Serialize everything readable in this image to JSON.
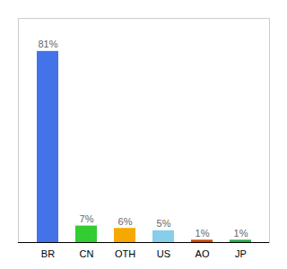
{
  "chart_data": {
    "type": "bar",
    "categories": [
      "BR",
      "CN",
      "OTH",
      "US",
      "AO",
      "JP"
    ],
    "values": [
      81,
      7,
      6,
      5,
      1,
      1
    ],
    "value_labels": [
      "81%",
      "7%",
      "6%",
      "5%",
      "1%",
      "1%"
    ],
    "data_labels": true,
    "colors": [
      "#4472e8",
      "#33cc33",
      "#f5a800",
      "#87ceeb",
      "#cc4400",
      "#22aa44"
    ],
    "ylim": [
      0,
      95
    ],
    "yticks": [],
    "tick_labels": "x",
    "grid": false
  }
}
